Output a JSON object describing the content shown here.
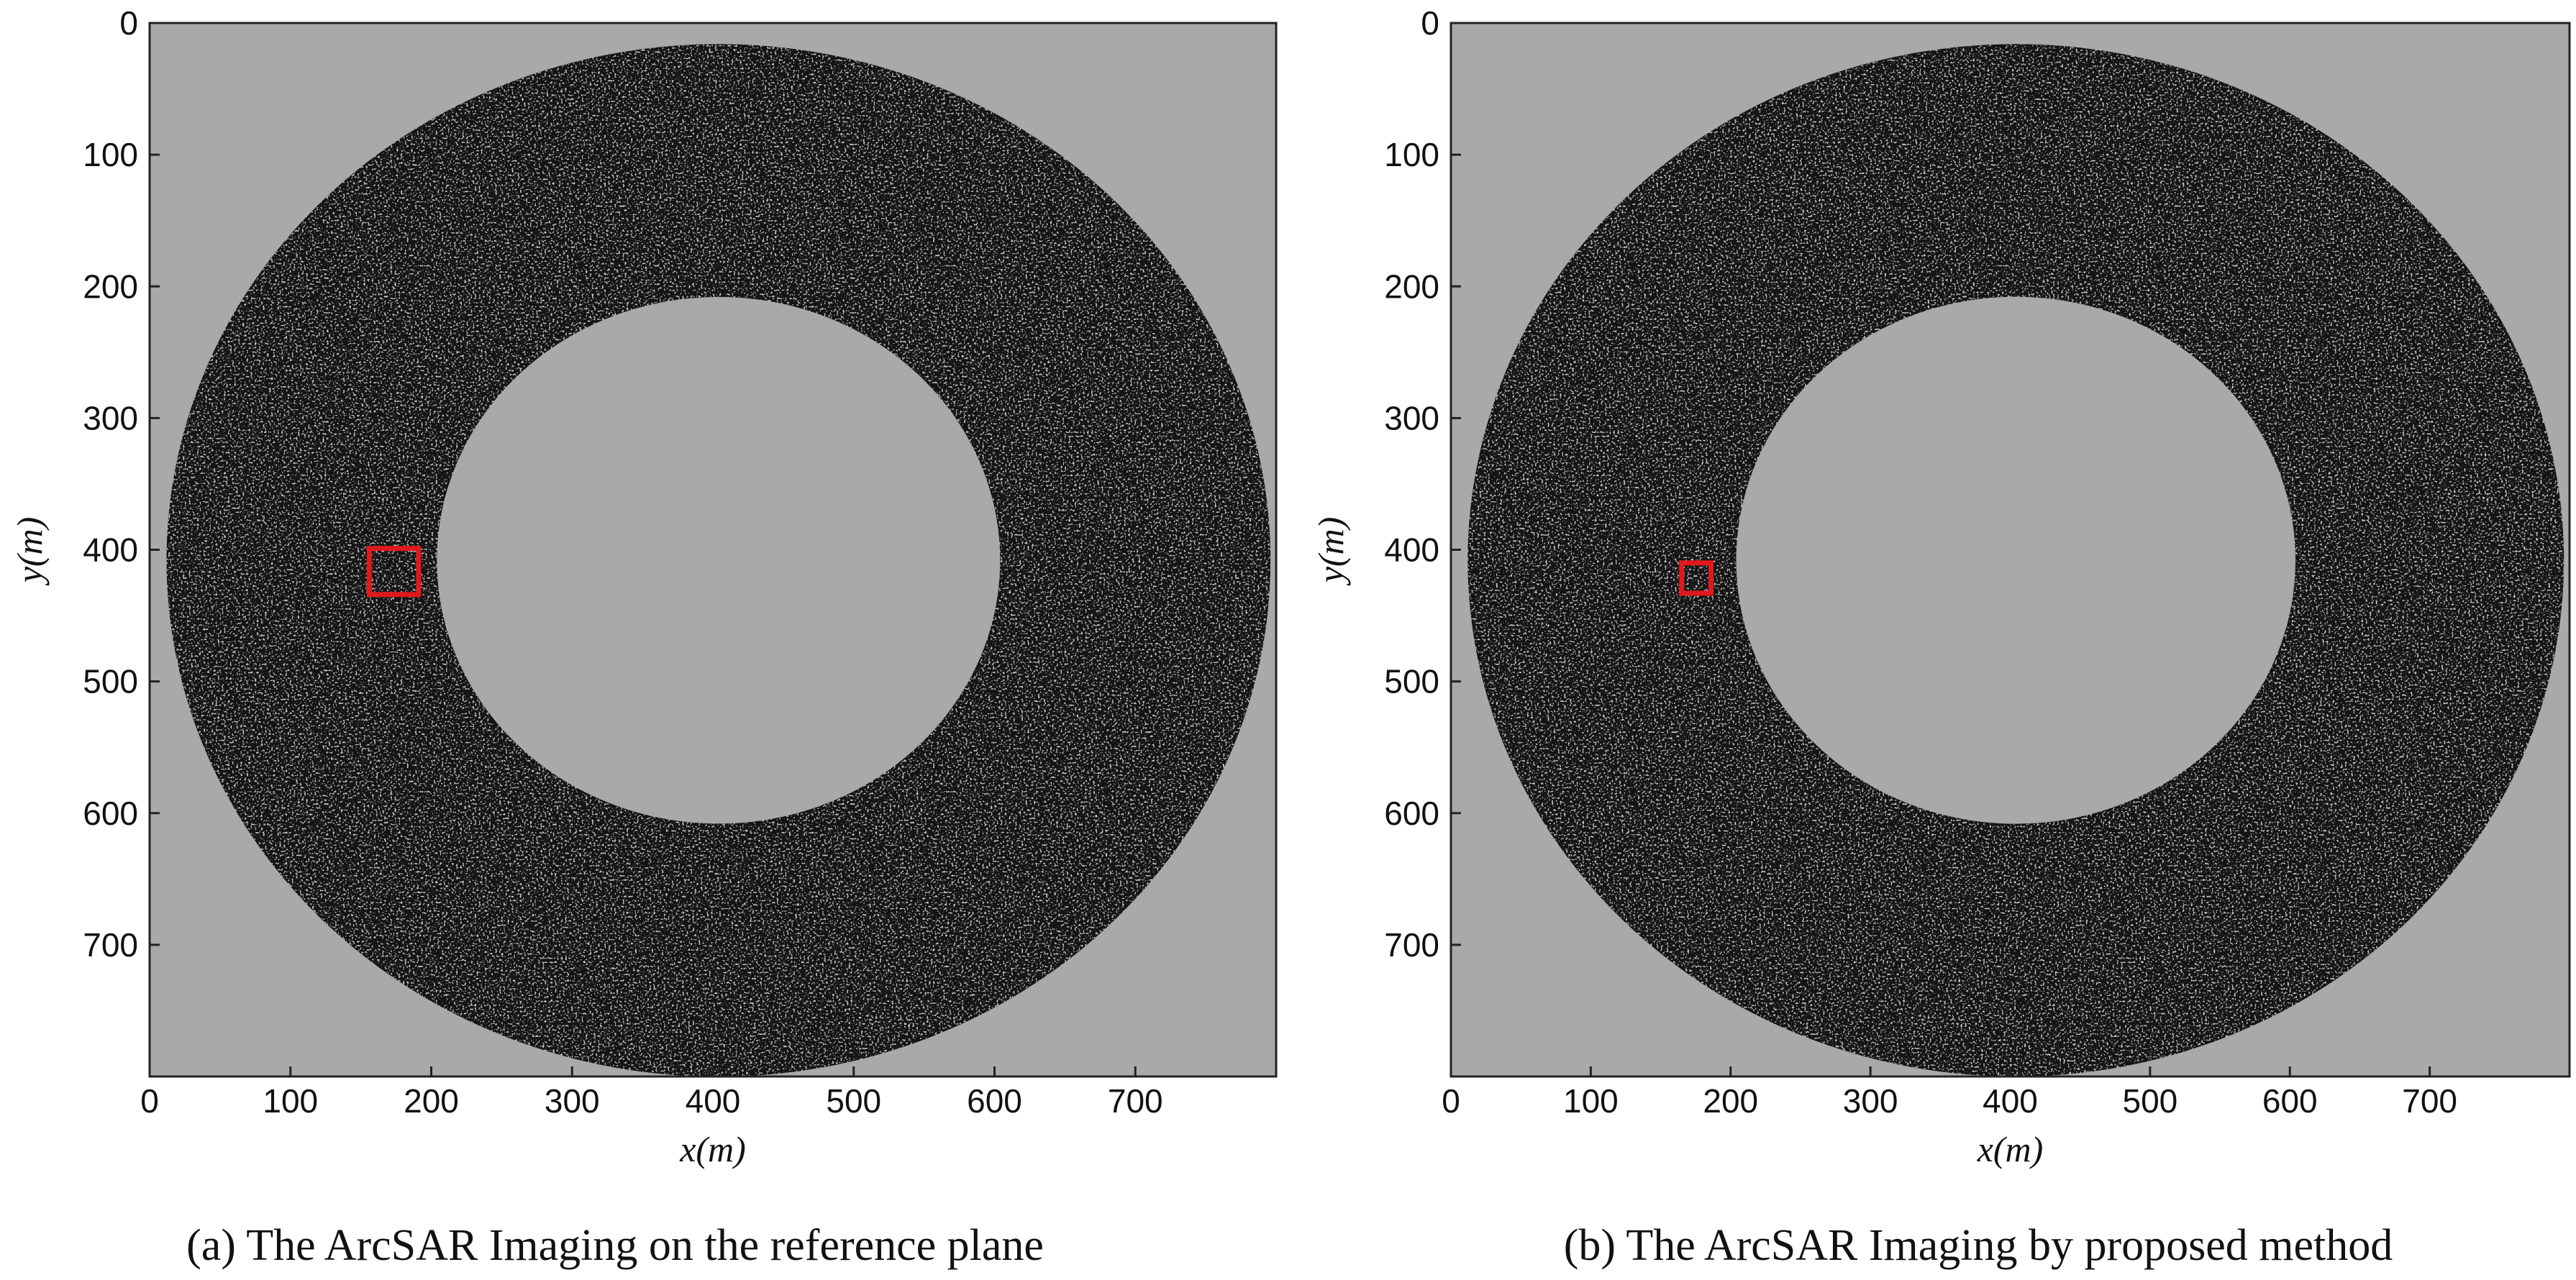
{
  "chart_data": [
    {
      "type": "image",
      "caption": "(a) The ArcSAR Imaging on the reference plane",
      "xlabel": "x(m)",
      "ylabel": "y(m)",
      "xlim": [
        0,
        800
      ],
      "ylim": [
        800,
        0
      ],
      "xticks": [
        0,
        100,
        200,
        300,
        400,
        500,
        600,
        700
      ],
      "yticks": [
        0,
        100,
        200,
        300,
        400,
        500,
        600,
        700
      ],
      "box": {
        "x": [
          156,
          191
        ],
        "y": [
          399,
          434
        ],
        "color": "#e0191e"
      }
    },
    {
      "type": "image",
      "caption": "(b) The ArcSAR Imaging by proposed method",
      "xlabel": "x(m)",
      "ylabel": "y(m)",
      "xlim": [
        0,
        800
      ],
      "ylim": [
        800,
        0
      ],
      "xticks": [
        0,
        100,
        200,
        300,
        400,
        500,
        600,
        700
      ],
      "yticks": [
        0,
        100,
        200,
        300,
        400,
        500,
        600,
        700
      ],
      "box": {
        "x": [
          165,
          186
        ],
        "y": [
          410,
          433
        ],
        "color": "#e0191e"
      }
    }
  ]
}
